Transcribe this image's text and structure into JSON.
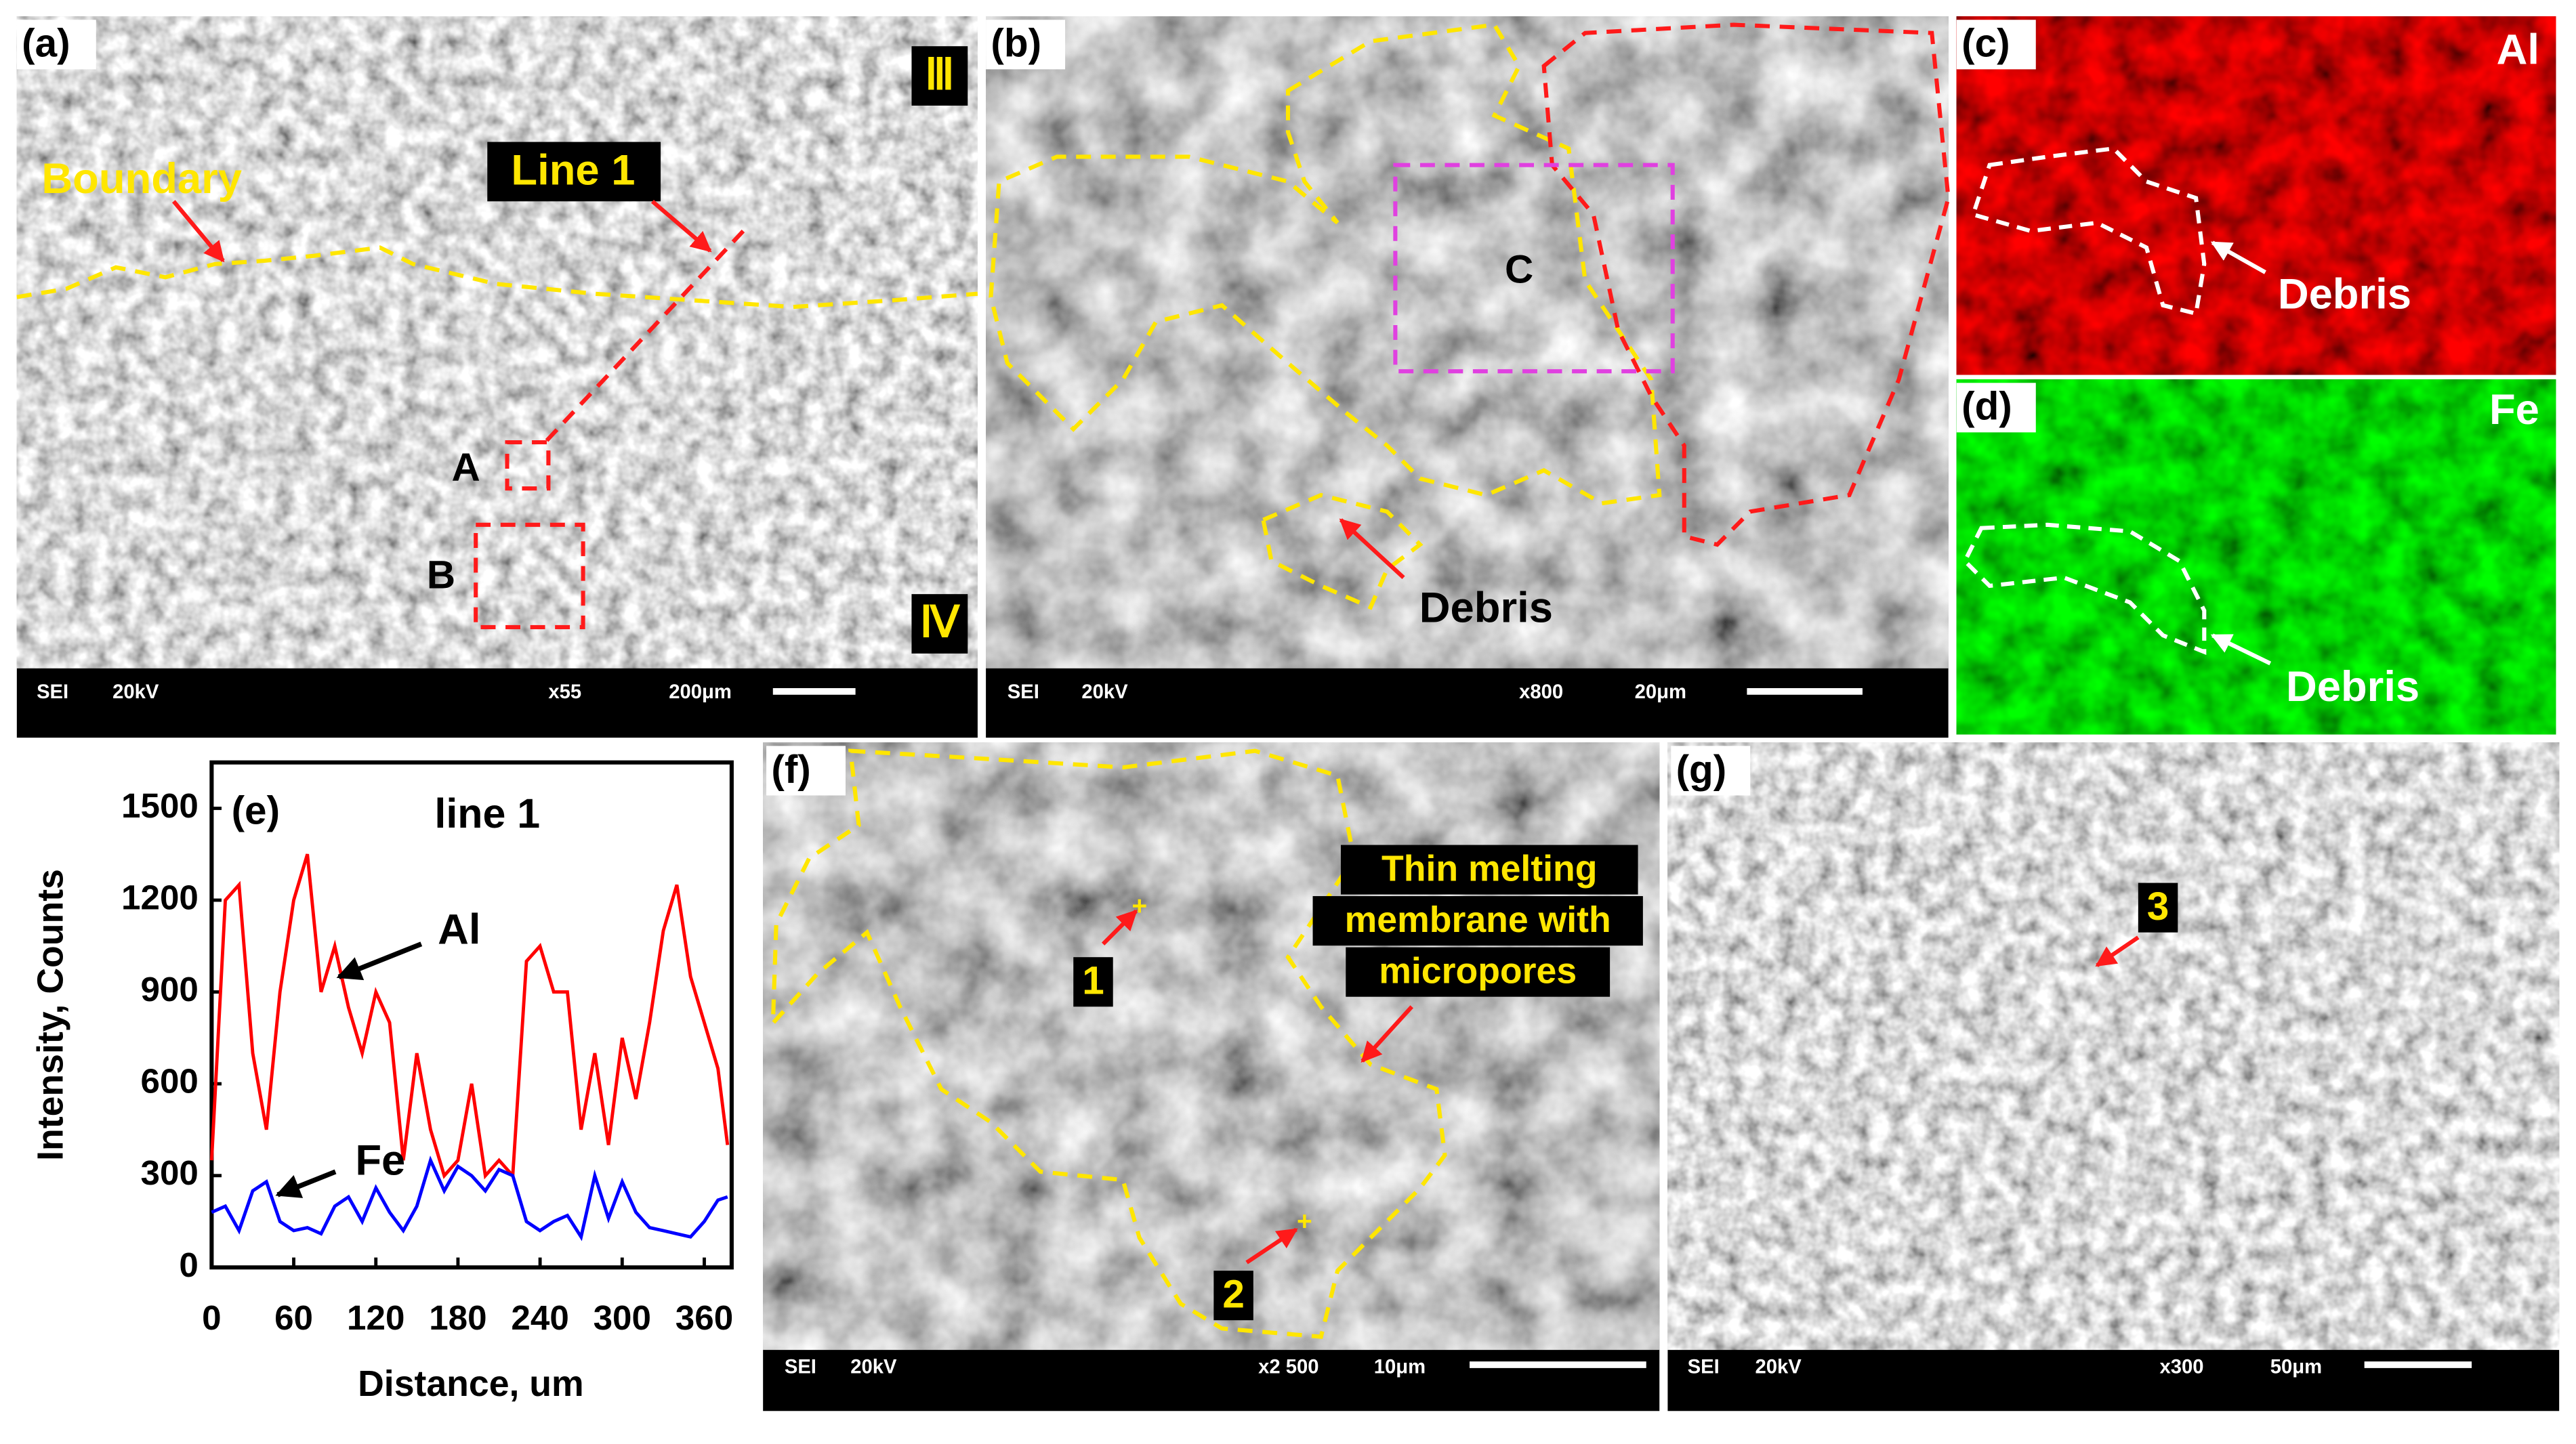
{
  "panels": {
    "a": {
      "label": "(a)",
      "texts": [
        "Ⅲ",
        "Ⅳ",
        "Boundary",
        "Line 1",
        "A",
        "B"
      ],
      "info": [
        "SEI",
        "20kV",
        "x55",
        "200μm"
      ]
    },
    "b": {
      "label": "(b)",
      "texts": [
        "C",
        "Debris"
      ],
      "info": [
        "SEI",
        "20kV",
        "x800",
        "20μm"
      ]
    },
    "c": {
      "label": "(c)",
      "texts": [
        "Al",
        "Debris"
      ]
    },
    "d": {
      "label": "(d)",
      "texts": [
        "Fe",
        "Debris"
      ]
    },
    "f": {
      "label": "(f)",
      "texts": [
        "Thin melting",
        "membrane with",
        "micropores",
        "1",
        "2"
      ],
      "info": [
        "SEI",
        "20kV",
        "x2 500",
        "10μm"
      ]
    },
    "g": {
      "label": "(g)",
      "texts": [
        "3"
      ],
      "info": [
        "SEI",
        "20kV",
        "x300",
        "50μm"
      ]
    }
  },
  "chart_data": {
    "type": "line",
    "label": "(e)",
    "title": "line 1",
    "x_label": "Distance, um",
    "y_label": "Intensity, Counts",
    "x": [
      0,
      10,
      20,
      30,
      40,
      50,
      60,
      70,
      80,
      90,
      100,
      110,
      120,
      130,
      140,
      150,
      160,
      170,
      180,
      190,
      200,
      210,
      220,
      230,
      240,
      250,
      260,
      270,
      280,
      290,
      300,
      310,
      320,
      330,
      340,
      350,
      360,
      370,
      377
    ],
    "series": [
      {
        "name": "Al",
        "color": "#ff0000",
        "values": [
          350,
          1200,
          1250,
          700,
          450,
          900,
          1200,
          1350,
          900,
          1050,
          850,
          700,
          900,
          800,
          350,
          700,
          450,
          300,
          350,
          600,
          300,
          350,
          300,
          1000,
          1050,
          900,
          900,
          450,
          700,
          400,
          750,
          550,
          800,
          1100,
          1250,
          950,
          800,
          650,
          400
        ]
      },
      {
        "name": "Fe",
        "color": "#0000ff",
        "values": [
          180,
          200,
          120,
          250,
          280,
          150,
          120,
          130,
          110,
          200,
          230,
          150,
          260,
          180,
          120,
          200,
          350,
          250,
          330,
          300,
          250,
          320,
          300,
          150,
          120,
          150,
          170,
          100,
          300,
          160,
          280,
          180,
          130,
          120,
          110,
          100,
          150,
          220,
          230
        ]
      }
    ],
    "xlim": [
      0,
      380
    ],
    "ylim": [
      0,
      1650
    ],
    "xticks": [
      0,
      60,
      120,
      180,
      240,
      300,
      360
    ],
    "yticks": [
      0,
      300,
      600,
      900,
      1200,
      1500
    ]
  }
}
